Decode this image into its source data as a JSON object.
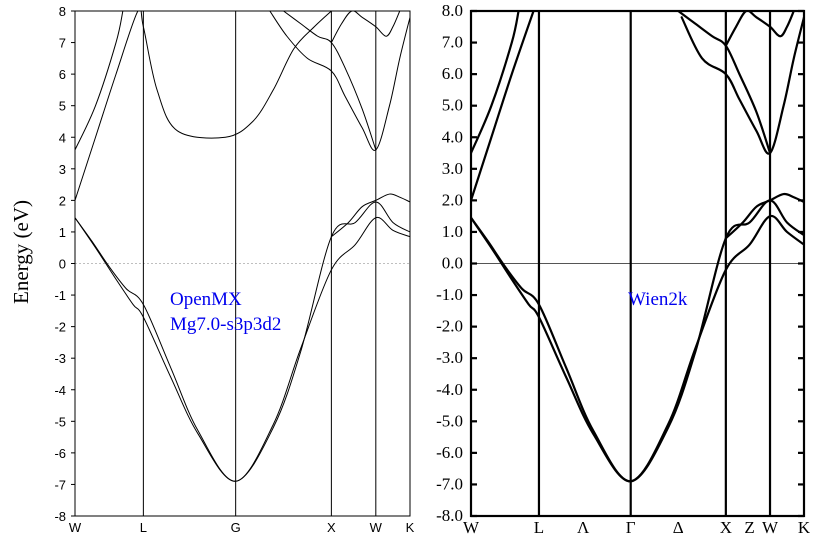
{
  "chart_data": [
    {
      "type": "line",
      "ylabel": "Energy (eV)",
      "ylim": [
        -8,
        8
      ],
      "yticks": [
        "8",
        "7",
        "6",
        "5",
        "4",
        "3",
        "2",
        "1",
        "0",
        "-1",
        "-2",
        "-3",
        "-4",
        "-5",
        "-6",
        "-7",
        "-8"
      ],
      "kpoints": [
        "W",
        "L",
        "G",
        "X",
        "W",
        "K"
      ],
      "kpoint_positions": [
        0,
        1,
        2.35,
        3.75,
        4.4,
        4.9
      ],
      "fermi_level": 0,
      "annotation": [
        "OpenMX",
        "Mg7.0-s3p3d2"
      ],
      "annotation_color": "#0000ee",
      "bands": [
        {
          "x": [
            0,
            0.25,
            0.5,
            0.75,
            1,
            1.4,
            1.8,
            2.35,
            2.9,
            3.3,
            3.75,
            4.1,
            4.4,
            4.65,
            4.9
          ],
          "y": [
            1.45,
            0.7,
            -0.1,
            -0.8,
            -1.3,
            -3.3,
            -5.3,
            -6.9,
            -5.1,
            -2.7,
            -0.2,
            0.6,
            1.45,
            1.05,
            0.85
          ]
        },
        {
          "x": [
            0,
            0.3,
            0.6,
            0.85,
            1,
            1.4,
            1.8,
            2.35,
            2.9,
            3.3,
            3.75,
            4.1,
            4.4,
            4.65,
            4.9
          ],
          "y": [
            1.45,
            0.5,
            -0.5,
            -1.3,
            -1.7,
            -3.6,
            -5.4,
            -6.9,
            -5.2,
            -2.8,
            0.85,
            1.3,
            1.95,
            1.3,
            1.0
          ]
        },
        {
          "x": [
            0,
            0.3,
            0.6,
            0.92,
            1.0,
            1.2,
            1.5,
            2.2,
            2.6,
            2.9,
            3.2,
            3.5,
            3.75
          ],
          "y": [
            2.0,
            4.0,
            6.0,
            8.0,
            7.5,
            5.5,
            4.2,
            4.0,
            4.5,
            5.5,
            6.8,
            7.5,
            8.0
          ]
        },
        {
          "x": [
            0,
            0.3,
            0.6,
            0.7
          ],
          "y": [
            3.6,
            5.0,
            7.0,
            8.0
          ]
        },
        {
          "x": [
            3.05,
            3.3,
            3.55,
            3.75,
            3.95,
            4.2,
            4.4
          ],
          "y": [
            8.0,
            7.6,
            7.2,
            7.0,
            6.2,
            4.9,
            3.6
          ]
        },
        {
          "x": [
            2.85,
            3.1,
            3.4,
            3.75,
            3.95,
            4.2,
            4.4,
            4.6,
            4.75,
            4.9
          ],
          "y": [
            8.0,
            7.2,
            6.5,
            6.1,
            5.3,
            4.3,
            3.6,
            5.0,
            6.5,
            7.8
          ]
        },
        {
          "x": [
            3.75,
            3.9,
            4.05,
            4.2,
            4.4,
            4.55,
            4.65,
            4.75
          ],
          "y": [
            7.0,
            7.6,
            8.0,
            7.8,
            7.5,
            7.2,
            7.5,
            8.0
          ]
        },
        {
          "x": [
            3.75,
            4.0,
            4.2,
            4.4,
            4.6,
            4.75,
            4.9
          ],
          "y": [
            0.85,
            1.3,
            1.8,
            2.0,
            2.2,
            2.1,
            1.95
          ]
        }
      ]
    },
    {
      "type": "line",
      "ylim": [
        -8,
        8
      ],
      "yticks": [
        "8.0",
        "7.0",
        "6.0",
        "5.0",
        "4.0",
        "3.0",
        "2.0",
        "1.0",
        "0.0",
        "-1.0",
        "-2.0",
        "-3.0",
        "-4.0",
        "-5.0",
        "-6.0",
        "-7.0",
        "-8.0"
      ],
      "kpoints": [
        "W",
        "L",
        "Λ",
        "Γ",
        "Δ",
        "X",
        "Z",
        "W",
        "K"
      ],
      "kpoint_positions": [
        0,
        1,
        1.65,
        2.35,
        3.05,
        3.75,
        4.1,
        4.4,
        4.9
      ],
      "kpoint_vlines": [
        1,
        2.35,
        3.75,
        4.4
      ],
      "fermi_level": 0,
      "annotation": [
        "Wien2k"
      ],
      "annotation_color": "#0000ee",
      "bands": [
        {
          "x": [
            0,
            0.25,
            0.5,
            0.75,
            1,
            1.4,
            1.8,
            2.35,
            2.9,
            3.3,
            3.75,
            4.1,
            4.4,
            4.65,
            4.9
          ],
          "y": [
            1.45,
            0.7,
            -0.1,
            -0.8,
            -1.3,
            -3.3,
            -5.3,
            -6.9,
            -5.1,
            -2.7,
            -0.2,
            0.6,
            1.5,
            1.0,
            0.6
          ]
        },
        {
          "x": [
            0,
            0.3,
            0.6,
            0.85,
            1,
            1.4,
            1.8,
            2.35,
            2.9,
            3.3,
            3.75,
            4.1,
            4.4,
            4.65,
            4.9
          ],
          "y": [
            1.45,
            0.5,
            -0.5,
            -1.3,
            -1.7,
            -3.6,
            -5.4,
            -6.9,
            -5.2,
            -2.8,
            0.8,
            1.3,
            2.0,
            1.3,
            0.9
          ]
        },
        {
          "x": [
            0,
            0.3,
            0.6,
            0.92
          ],
          "y": [
            2.0,
            4.0,
            6.0,
            8.0
          ]
        },
        {
          "x": [
            0,
            0.3,
            0.6,
            0.7
          ],
          "y": [
            3.5,
            5.0,
            7.0,
            8.0
          ]
        },
        {
          "x": [
            3.05,
            3.3,
            3.55,
            3.75,
            3.95,
            4.2,
            4.4
          ],
          "y": [
            8.0,
            7.6,
            7.2,
            6.9,
            6.0,
            4.8,
            3.5
          ]
        },
        {
          "x": [
            3.1,
            3.4,
            3.75,
            3.95,
            4.2,
            4.4,
            4.6,
            4.75,
            4.9
          ],
          "y": [
            7.8,
            6.5,
            6.0,
            5.2,
            4.2,
            3.5,
            5.0,
            6.5,
            7.8
          ]
        },
        {
          "x": [
            3.75,
            3.9,
            4.05,
            4.2,
            4.4,
            4.55,
            4.65,
            4.75
          ],
          "y": [
            6.9,
            7.5,
            8.0,
            7.8,
            7.5,
            7.2,
            7.5,
            8.0
          ]
        },
        {
          "x": [
            3.75,
            4.0,
            4.2,
            4.4,
            4.6,
            4.75,
            4.9
          ],
          "y": [
            0.8,
            1.3,
            1.8,
            2.0,
            2.2,
            2.1,
            1.95
          ]
        }
      ]
    }
  ]
}
